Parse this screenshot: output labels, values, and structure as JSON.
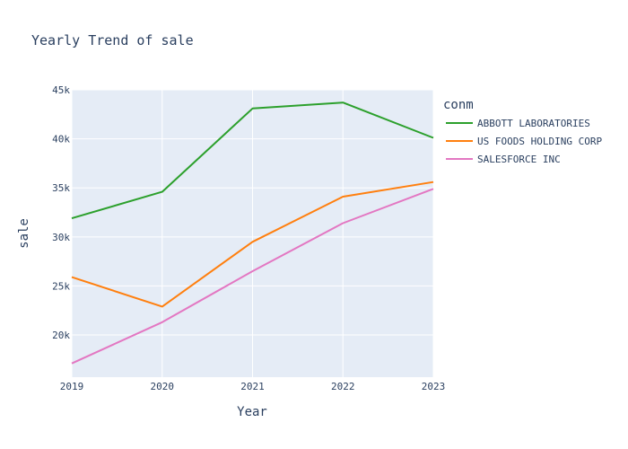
{
  "chart_data": {
    "type": "line",
    "title": "Yearly Trend of sale",
    "xlabel": "Year",
    "ylabel": "sale",
    "x": [
      2019,
      2020,
      2021,
      2022,
      2023
    ],
    "x_tick_labels": [
      "2019",
      "2020",
      "2021",
      "2022",
      "2023"
    ],
    "ylim": [
      15700,
      45000
    ],
    "y_ticks": [
      20000,
      25000,
      30000,
      35000,
      40000,
      45000
    ],
    "y_tick_labels": [
      "20k",
      "25k",
      "30k",
      "35k",
      "40k",
      "45k"
    ],
    "grid": true,
    "legend_title": "conm",
    "legend_position": "right",
    "series": [
      {
        "name": "ABBOTT LABORATORIES",
        "color": "#2ca02c",
        "values": [
          31900,
          34600,
          43100,
          43700,
          40100
        ]
      },
      {
        "name": "US FOODS HOLDING CORP",
        "color": "#ff7f0e",
        "values": [
          25900,
          22900,
          29500,
          34100,
          35600
        ]
      },
      {
        "name": "SALESFORCE INC",
        "color": "#e377c2",
        "values": [
          17100,
          21300,
          26500,
          31400,
          34900
        ]
      }
    ]
  }
}
